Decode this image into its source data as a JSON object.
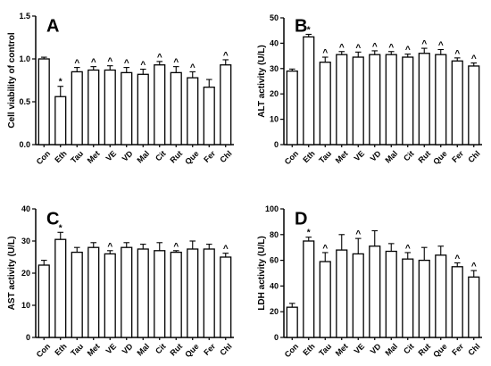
{
  "categories": [
    "Con",
    "Eth",
    "Tau",
    "Met",
    "VE",
    "VD",
    "Mal",
    "Cit",
    "Rut",
    "Que",
    "Fer",
    "Chl"
  ],
  "chart_data": [
    {
      "type": "bar",
      "panel": "A",
      "ylabel": "Cell viability of control",
      "ylim": [
        0,
        1.5
      ],
      "yticks": [
        "0.0",
        "0.5",
        "1.0",
        "1.5"
      ],
      "values": [
        1.0,
        0.56,
        0.85,
        0.87,
        0.87,
        0.84,
        0.82,
        0.93,
        0.84,
        0.78,
        0.67,
        0.93
      ],
      "errors": [
        0.02,
        0.12,
        0.05,
        0.04,
        0.05,
        0.06,
        0.06,
        0.04,
        0.07,
        0.07,
        0.09,
        0.06
      ],
      "markers": [
        "",
        "*",
        "^",
        "^",
        "^",
        "^",
        "^",
        "^",
        "^",
        "^",
        "",
        "^"
      ]
    },
    {
      "type": "bar",
      "panel": "B",
      "ylabel": "ALT activity (U/L)",
      "ylim": [
        0,
        50
      ],
      "yticks": [
        "0",
        "10",
        "20",
        "30",
        "40",
        "50"
      ],
      "values": [
        29,
        42.5,
        32.5,
        35.5,
        34.5,
        35.5,
        35.5,
        34.5,
        36,
        35.5,
        33,
        31
      ],
      "errors": [
        0.8,
        1.0,
        2.0,
        1.2,
        2.0,
        1.5,
        1.2,
        1.2,
        2.0,
        2.0,
        1.2,
        1.2
      ],
      "markers": [
        "",
        "*",
        "^",
        "^",
        "^",
        "^",
        "^",
        "^",
        "^",
        "^",
        "^",
        "^"
      ]
    },
    {
      "type": "bar",
      "panel": "C",
      "ylabel": "AST activity (U/L)",
      "ylim": [
        0,
        40
      ],
      "yticks": [
        "0",
        "10",
        "20",
        "30",
        "40"
      ],
      "values": [
        22.5,
        30.5,
        26.5,
        28,
        26,
        28,
        27.5,
        27,
        26.5,
        27.5,
        27.5,
        25
      ],
      "errors": [
        1.5,
        2.2,
        1.5,
        1.5,
        1.0,
        1.5,
        1.5,
        2.5,
        0.5,
        2.5,
        1.5,
        1.2
      ],
      "markers": [
        "",
        "*",
        "",
        "",
        "^",
        "",
        "",
        "",
        "^",
        "",
        "",
        "^"
      ]
    },
    {
      "type": "bar",
      "panel": "D",
      "ylabel": "LDH activity (U/L)",
      "ylim": [
        0,
        100
      ],
      "yticks": [
        "0",
        "20",
        "40",
        "60",
        "80",
        "100"
      ],
      "values": [
        23.5,
        75,
        59,
        68,
        65,
        71,
        67,
        61,
        60,
        64,
        55,
        47
      ],
      "errors": [
        3,
        3,
        7,
        12,
        12,
        12,
        6,
        5,
        10,
        7,
        3,
        5
      ],
      "markers": [
        "",
        "*",
        "^",
        "",
        "^",
        "",
        "",
        "^",
        "",
        "",
        "^",
        "^"
      ]
    }
  ]
}
